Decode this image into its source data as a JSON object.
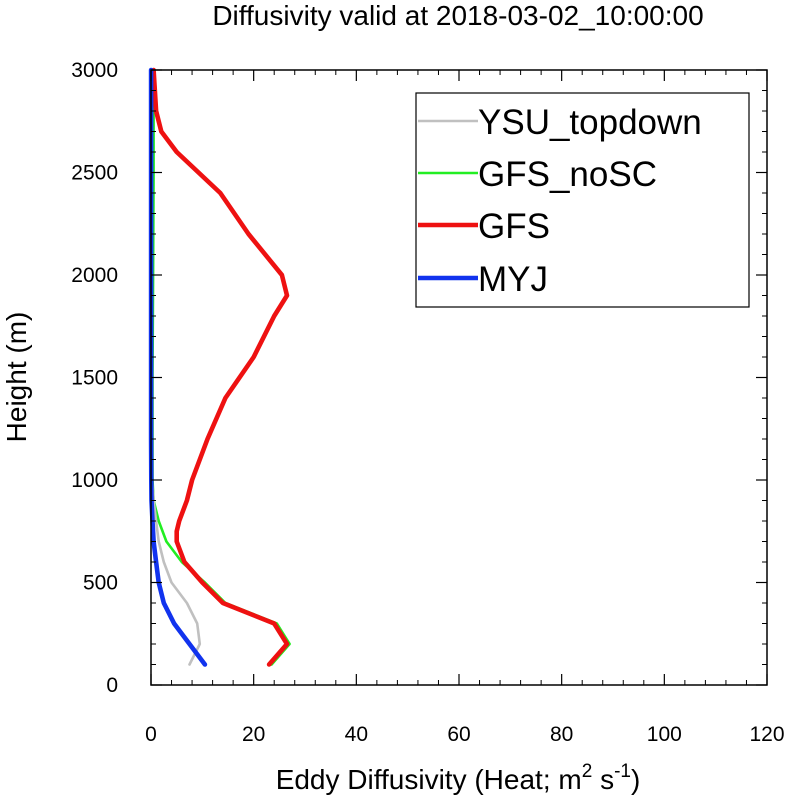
{
  "chart_data": {
    "type": "line",
    "title": "Diffusivity valid at 2018-03-02_10:00:00",
    "xlabel": {
      "main": "Eddy Diffusivity (Heat; m",
      "sup1": "2",
      "mid": " s",
      "sup2": "-1",
      "end": ")"
    },
    "ylabel": "Height (m)",
    "xlim": [
      0,
      120
    ],
    "ylim": [
      0,
      3000
    ],
    "x_ticks": [
      0,
      20,
      40,
      60,
      80,
      100,
      120
    ],
    "y_ticks": [
      0,
      500,
      1000,
      1500,
      2000,
      2500,
      3000
    ],
    "x_tick_labels": [
      "0",
      "20",
      "40",
      "60",
      "80",
      "100",
      "120"
    ],
    "y_tick_labels": [
      "0",
      "500",
      "1000",
      "1500",
      "2000",
      "2500",
      "3000"
    ],
    "x_minor_step": 4,
    "y_minor_step": 100,
    "grid": false,
    "legend_position": "top-right",
    "series": [
      {
        "name": "YSU_topdown",
        "color": "#c0c0c0",
        "points": [
          [
            7.5,
            100
          ],
          [
            9.5,
            200
          ],
          [
            9,
            300
          ],
          [
            7,
            400
          ],
          [
            4,
            500
          ],
          [
            2.5,
            600
          ],
          [
            1.5,
            700
          ],
          [
            1,
            800
          ],
          [
            0.5,
            900
          ],
          [
            0.2,
            1000
          ],
          [
            0.1,
            1200
          ],
          [
            0.05,
            1500
          ],
          [
            0.05,
            2000
          ],
          [
            0.05,
            2500
          ],
          [
            0.05,
            3000
          ]
        ]
      },
      {
        "name": "GFS_noSC",
        "color": "#22ee22",
        "points": [
          [
            23.5,
            100
          ],
          [
            27,
            200
          ],
          [
            24.5,
            300
          ],
          [
            14.5,
            400
          ],
          [
            10.5,
            500
          ],
          [
            6,
            600
          ],
          [
            3,
            700
          ],
          [
            1.5,
            800
          ],
          [
            0.5,
            900
          ],
          [
            0.3,
            1000
          ],
          [
            0.3,
            1500
          ],
          [
            0.4,
            2000
          ],
          [
            0.5,
            2500
          ],
          [
            0.5,
            3000
          ]
        ]
      },
      {
        "name": "GFS",
        "color": "#ee1111",
        "points": [
          [
            23,
            100
          ],
          [
            26.5,
            200
          ],
          [
            24,
            300
          ],
          [
            14,
            400
          ],
          [
            10,
            500
          ],
          [
            6.5,
            600
          ],
          [
            5,
            700
          ],
          [
            5,
            750
          ],
          [
            5.5,
            800
          ],
          [
            7,
            900
          ],
          [
            8,
            1000
          ],
          [
            11,
            1200
          ],
          [
            14.5,
            1400
          ],
          [
            20,
            1600
          ],
          [
            24,
            1800
          ],
          [
            26.5,
            1900
          ],
          [
            25.5,
            2000
          ],
          [
            19,
            2200
          ],
          [
            13.5,
            2400
          ],
          [
            5,
            2600
          ],
          [
            2,
            2700
          ],
          [
            1,
            2800
          ],
          [
            0.5,
            3000
          ]
        ]
      },
      {
        "name": "MYJ",
        "color": "#1133ee",
        "points": [
          [
            10.5,
            100
          ],
          [
            7.5,
            200
          ],
          [
            4.5,
            300
          ],
          [
            2.5,
            400
          ],
          [
            1.5,
            500
          ],
          [
            1,
            600
          ],
          [
            0.5,
            700
          ],
          [
            0.3,
            800
          ],
          [
            0.1,
            900
          ],
          [
            0.05,
            1000
          ],
          [
            0.02,
            1200
          ],
          [
            0.01,
            1500
          ],
          [
            0.01,
            2000
          ],
          [
            0.01,
            2500
          ],
          [
            0.01,
            3000
          ]
        ]
      }
    ]
  }
}
